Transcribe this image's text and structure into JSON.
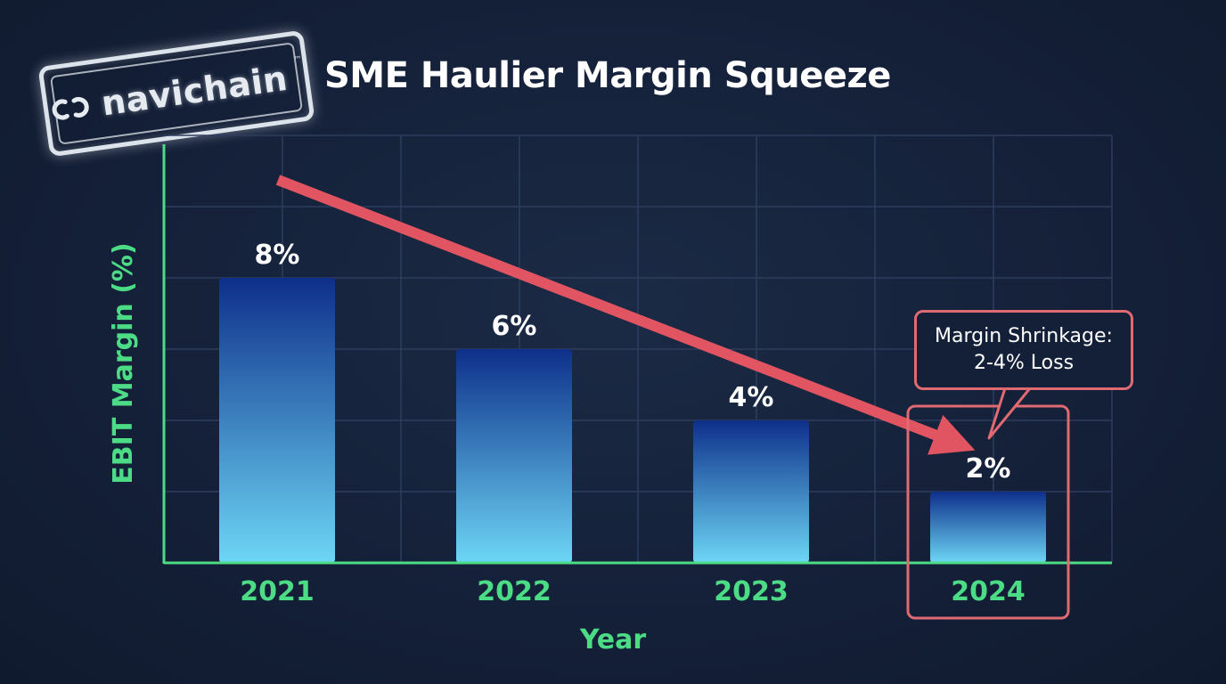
{
  "header": {
    "logo_text": "navichain",
    "logo_tm": "™",
    "title": "SME Haulier Margin Squeeze"
  },
  "callout": {
    "line1": "Margin Shrinkage:",
    "line2": "2-4% Loss"
  },
  "colors": {
    "axis": "#4ddc86",
    "bar_top": "#0e2f8a",
    "bar_bottom": "#6dd6f5",
    "arrow": "#e05561",
    "highlight": "#e06a72"
  },
  "chart_data": {
    "type": "bar",
    "title": "SME Haulier Margin Squeeze",
    "xlabel": "Year",
    "ylabel": "EBIT Margin (%)",
    "categories": [
      "2021",
      "2022",
      "2023",
      "2024"
    ],
    "values": [
      8,
      6,
      4,
      2
    ],
    "value_labels": [
      "8%",
      "6%",
      "4%",
      "2%"
    ],
    "ylim": [
      0,
      12
    ],
    "grid": true,
    "annotations": [
      {
        "type": "trend-arrow",
        "from": "2021",
        "to": "2024",
        "direction": "down"
      },
      {
        "type": "highlight-box",
        "category": "2024"
      },
      {
        "type": "callout",
        "text": "Margin Shrinkage: 2-4% Loss",
        "category": "2024"
      }
    ]
  }
}
